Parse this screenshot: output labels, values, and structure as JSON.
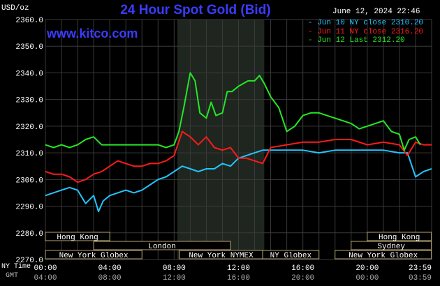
{
  "header": {
    "title": "24 Hour Spot Gold (Bid)",
    "watermark": "www.kitco.com",
    "unit": "USD/oz",
    "datetime": "June 12, 2024 22:46"
  },
  "legend": [
    {
      "label": "Jun 10 NY close 2310.20",
      "color": "#22c5ff"
    },
    {
      "label": "Jun 11 NY close 2316.20",
      "color": "#ff1a1a"
    },
    {
      "label": "Jun 12 Last 2312.20",
      "color": "#25e625"
    }
  ],
  "axis_labels": {
    "ny_time": "NY Time",
    "gmt": "GMT"
  },
  "markets": [
    {
      "name": "Hong Kong",
      "row": 1,
      "from": "00:00",
      "to": "04:00"
    },
    {
      "name": "Hong Kong",
      "row": 1,
      "from": "20:00",
      "to": "23:59"
    },
    {
      "name": "London",
      "row": 2,
      "from": "03:00",
      "to": "11:30"
    },
    {
      "name": "Sydney",
      "row": 2,
      "from": "19:00",
      "to": "23:59"
    },
    {
      "name": "New York Globex",
      "row": 3,
      "from": "00:00",
      "to": "06:00"
    },
    {
      "name": "New York NYMEX",
      "row": 3,
      "from": "08:20",
      "to": "13:30"
    },
    {
      "name": "NY Globex",
      "row": 3,
      "from": "13:30",
      "to": "17:00"
    },
    {
      "name": "New York Globex",
      "row": 3,
      "from": "18:00",
      "to": "23:59"
    }
  ],
  "chart_data": {
    "type": "line",
    "title": "24 Hour Spot Gold (Bid)",
    "ylabel": "USD/oz",
    "ylim": [
      2270,
      2360
    ],
    "yticks": [
      "2360.0",
      "2350.0",
      "2340.0",
      "2330.0",
      "2320.0",
      "2310.0",
      "2300.0",
      "2290.0",
      "2280.0",
      "2270.0"
    ],
    "xticks_ny": [
      "00:00",
      "04:00",
      "08:00",
      "12:00",
      "16:00",
      "20:00",
      "23:59"
    ],
    "xticks_gmt": [
      "04:00",
      "08:00",
      "12:00",
      "16:00",
      "20:00",
      "00:00",
      "03:59"
    ],
    "x_hours": [
      0,
      1,
      2,
      3,
      4,
      5,
      6,
      7,
      8,
      9,
      10,
      11,
      12,
      13,
      14,
      15,
      16,
      17,
      18,
      19,
      20,
      21,
      22,
      23,
      24
    ],
    "highlight_hours": [
      8.2,
      13.6
    ],
    "series": [
      {
        "name": "Jun 10 NY close 2310.20",
        "color": "#22c5ff",
        "x": [
          0,
          0.5,
          1,
          1.5,
          2,
          2.5,
          3,
          3.3,
          3.6,
          4,
          4.5,
          5,
          5.5,
          6,
          6.5,
          7,
          7.5,
          8,
          8.5,
          9,
          9.5,
          10,
          10.5,
          11,
          11.5,
          12,
          12.5,
          13,
          13.5,
          14,
          15,
          16,
          17,
          18,
          19,
          20,
          21,
          22,
          22.5,
          23,
          23.5,
          24
        ],
        "y": [
          2294,
          2295,
          2296,
          2297,
          2296,
          2291,
          2294,
          2288,
          2292,
          2294,
          2295,
          2296,
          2295,
          2296,
          2298,
          2300,
          2301,
          2303,
          2305,
          2304,
          2303,
          2304,
          2304,
          2306,
          2305,
          2308,
          2309,
          2310,
          2311,
          2311,
          2311,
          2311,
          2310,
          2311,
          2311,
          2311,
          2311,
          2310,
          2310,
          2301,
          2303,
          2304
        ]
      },
      {
        "name": "Jun 11 NY close 2316.20",
        "color": "#ff1a1a",
        "x": [
          0,
          0.5,
          1,
          1.5,
          2,
          2.5,
          3,
          3.5,
          4,
          4.5,
          5,
          5.5,
          6,
          6.5,
          7,
          7.5,
          8,
          8.5,
          9,
          9.5,
          10,
          10.5,
          11,
          11.5,
          12,
          12.5,
          13,
          13.5,
          14,
          15,
          16,
          17,
          18,
          19,
          20,
          21,
          22,
          22.5,
          23,
          23.5,
          24
        ],
        "y": [
          2303,
          2302,
          2302,
          2301,
          2299,
          2300,
          2302,
          2303,
          2305,
          2307,
          2306,
          2305,
          2305,
          2306,
          2306,
          2307,
          2309,
          2318,
          2316,
          2313,
          2316,
          2312,
          2311,
          2312,
          2308,
          2308,
          2307,
          2306,
          2312,
          2313,
          2314,
          2314,
          2315,
          2315,
          2313,
          2314,
          2313,
          2309,
          2314,
          2313,
          2313
        ]
      },
      {
        "name": "Jun 12 Last 2312.20",
        "color": "#25e625",
        "x": [
          0,
          0.5,
          1,
          1.5,
          2,
          2.5,
          3,
          3.5,
          4,
          4.5,
          5,
          5.5,
          6,
          6.5,
          7,
          7.5,
          8,
          8.3,
          8.6,
          9,
          9.3,
          9.6,
          10,
          10.3,
          10.6,
          11,
          11.3,
          11.6,
          12,
          12.3,
          12.6,
          13,
          13.3,
          13.6,
          14,
          14.5,
          15,
          15.5,
          16,
          16.5,
          17,
          18,
          18.5,
          19,
          19.5,
          20,
          20.5,
          21,
          21.5,
          22,
          22.3,
          22.6,
          23,
          23.3
        ],
        "y": [
          2313,
          2312,
          2313,
          2312,
          2313,
          2315,
          2316,
          2313,
          2313,
          2313,
          2313,
          2313,
          2313,
          2313,
          2313,
          2312,
          2313,
          2318,
          2327,
          2340,
          2337,
          2325,
          2323,
          2329,
          2324,
          2325,
          2333,
          2333,
          2335,
          2336,
          2337,
          2337,
          2339,
          2336,
          2331,
          2327,
          2318,
          2320,
          2324,
          2325,
          2325,
          2323,
          2322,
          2321,
          2319,
          2320,
          2321,
          2322,
          2318,
          2317,
          2311,
          2315,
          2316,
          2313
        ]
      }
    ]
  }
}
